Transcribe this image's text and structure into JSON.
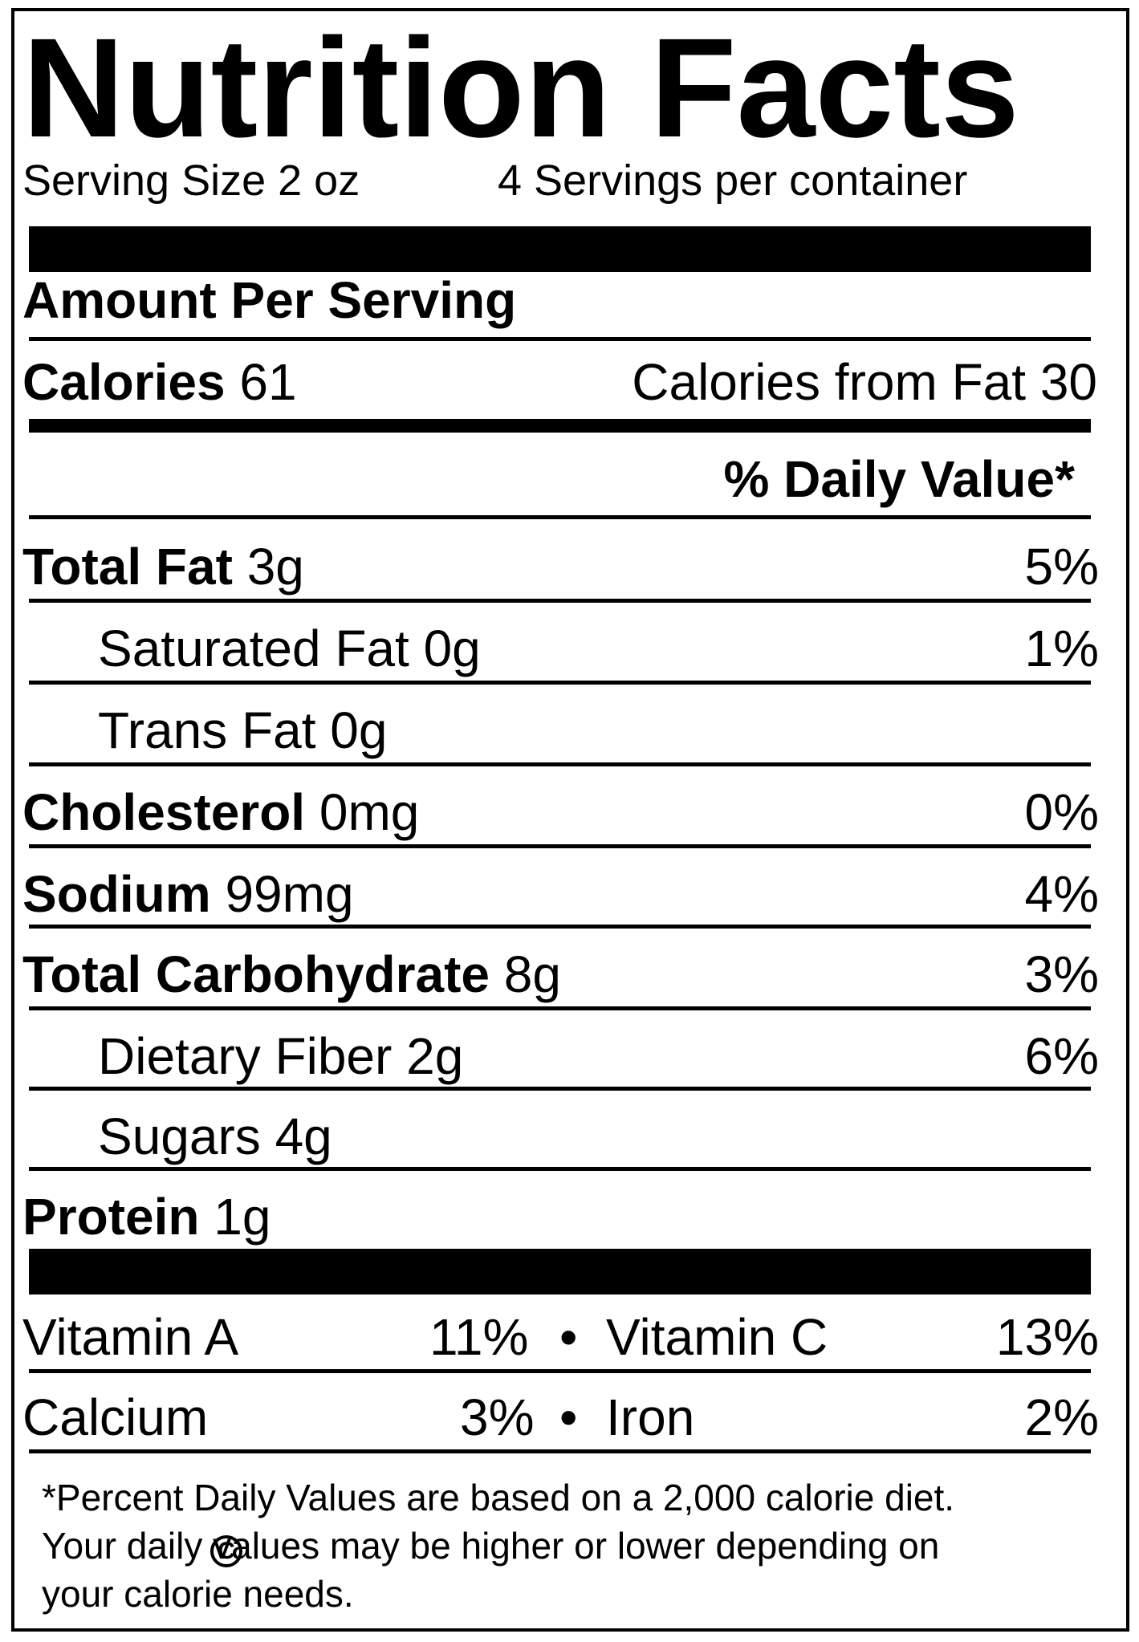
{
  "header": {
    "title": "Nutrition Facts",
    "serving_size": "Serving Size 2 oz",
    "servings_per_container": "4 Servings per container"
  },
  "amount_per_serving": "Amount Per Serving",
  "calories": {
    "label": "Calories",
    "value": "61",
    "from_fat": "Calories from Fat 30"
  },
  "daily_value_header": "% Daily Value*",
  "nutrients": {
    "total_fat": {
      "label": "Total Fat",
      "amount": "3g",
      "dv": "5%"
    },
    "saturated_fat": {
      "label": "Saturated Fat 0g",
      "dv": "1%"
    },
    "trans_fat": {
      "label": "Trans Fat 0g"
    },
    "cholesterol": {
      "label": "Cholesterol",
      "amount": "0mg",
      "dv": "0%"
    },
    "sodium": {
      "label": "Sodium",
      "amount": "99mg",
      "dv": "4%"
    },
    "total_carbohydrate": {
      "label": "Total Carbohydrate",
      "amount": "8g",
      "dv": "3%"
    },
    "dietary_fiber": {
      "label": "Dietary Fiber 2g",
      "dv": "6%"
    },
    "sugars": {
      "label": "Sugars 4g"
    },
    "protein": {
      "label": "Protein",
      "amount": "1g"
    }
  },
  "vitamins": {
    "vitamin_a": {
      "label": "Vitamin A",
      "dv": "11%"
    },
    "vitamin_c": {
      "label": "Vitamin C",
      "dv": "13%"
    },
    "calcium": {
      "label": "Calcium",
      "dv": "3%"
    },
    "iron": {
      "label": "Iron",
      "dv": "2%"
    },
    "bullet": "•"
  },
  "footnote": "*Percent Daily Values are based on a 2,000 calorie diet.\nYour daily values may be higher or lower depending on\nyour calorie needs.",
  "copyright_symbol": "C"
}
